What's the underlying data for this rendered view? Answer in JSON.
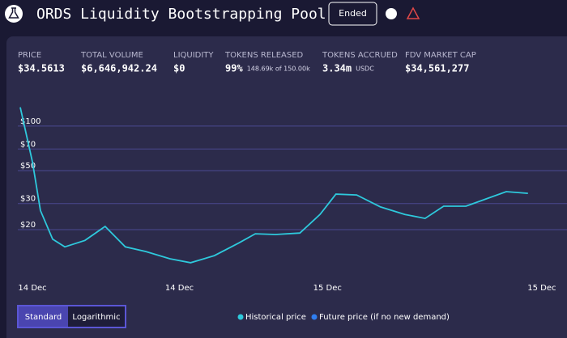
{
  "header": {
    "title": "ORDS Liquidity Bootstrapping Pool",
    "status": "Ended"
  },
  "stats": [
    {
      "label": "PRICE",
      "value": "$34.5613"
    },
    {
      "label": "TOTAL VOLUME",
      "value": "$6,646,942.24"
    },
    {
      "label": "LIQUIDITY",
      "value": "$0"
    },
    {
      "label": "TOKENS RELEASED",
      "value": "99%",
      "sub": "148.69k of 150.00k"
    },
    {
      "label": "TOKENS ACCRUED",
      "value": "3.34m",
      "sub": "USDC"
    },
    {
      "label": "FDV MARKET CAP",
      "value": "$34,561,277"
    }
  ],
  "chart_data": {
    "type": "line",
    "log_scale": true,
    "grid": true,
    "x": [
      0,
      2.3,
      3.8,
      6.1,
      8.4,
      12.2,
      16,
      19.8,
      23.7,
      28.2,
      32.1,
      36.6,
      41.2,
      44.3,
      48.1,
      52.7,
      56.5,
      59.5,
      63.4,
      67.9,
      72.5,
      76.3,
      79.8,
      84,
      87.8,
      91.6,
      95.7
    ],
    "series": [
      {
        "name": "Historical price",
        "color": "#2ec9dc",
        "values": [
          124,
          53,
          25,
          16,
          14.2,
          15.7,
          19.5,
          14.2,
          13.2,
          11.8,
          11.1,
          12.4,
          15.1,
          17.4,
          17.2,
          17.6,
          23.5,
          32.2,
          31.8,
          26.4,
          23.5,
          22.1,
          26.7,
          26.7,
          29.9,
          33.5,
          32.6
        ]
      }
    ],
    "xlim": [
      0,
      100
    ],
    "xticks": [
      {
        "value": 2.3,
        "label": "14 Dec"
      },
      {
        "value": 30,
        "label": "14 Dec"
      },
      {
        "value": 57.9,
        "label": "15 Dec"
      },
      {
        "value": 98.3,
        "label": "15 Dec"
      }
    ],
    "ylim": [
      9.3,
      153
    ],
    "yticks": [
      {
        "value": 20,
        "label": "$20"
      },
      {
        "value": 30,
        "label": "$30"
      },
      {
        "value": 50,
        "label": "$50"
      },
      {
        "value": 70,
        "label": "$70"
      },
      {
        "value": 100,
        "label": "$100"
      }
    ]
  },
  "legend_extra": {
    "text": "Future price (if no new demand)",
    "color": "#2f7df0"
  },
  "scale_toggle": {
    "options": [
      "Standard",
      "Logarithmic"
    ],
    "active": 0
  }
}
